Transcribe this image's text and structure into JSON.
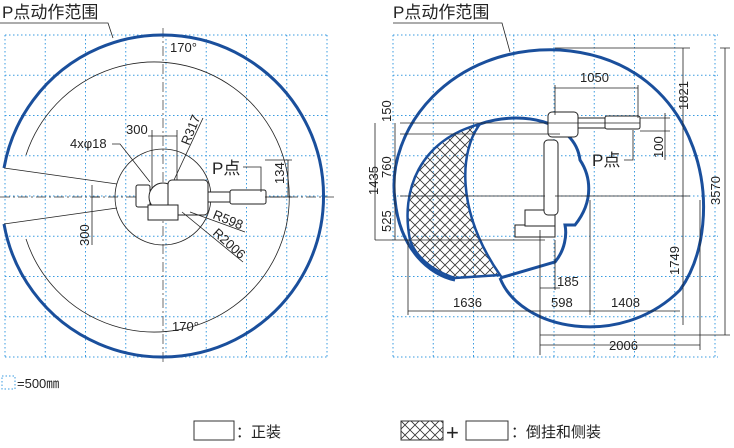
{
  "left_view": {
    "title": "P点动作范围",
    "point_label": "P点",
    "angle_top": "170°",
    "angle_bottom": "170°",
    "dims": {
      "d300_top": "300",
      "hole": "4xφ18",
      "r317": "R317",
      "d134": "134",
      "r598": "R598",
      "r2006": "R2006",
      "d300_left": "300"
    }
  },
  "right_view": {
    "title": "P点动作范围",
    "point_label": "P点",
    "dims": {
      "d1050": "1050",
      "d1821": "1821",
      "d150": "150",
      "d1435": "1435",
      "d760": "760",
      "d525": "525",
      "d100": "100",
      "d3570": "3570",
      "d1749": "1749",
      "d185": "185",
      "d1636": "1636",
      "d598": "598",
      "d1408": "1408",
      "d2006": "2006"
    }
  },
  "grid_legend": "=500㎜",
  "legend": {
    "floor": "：正装",
    "plus": "+",
    "inverted_side": "：倒挂和侧装"
  },
  "colors": {
    "range_outline": "#1a4f9c",
    "grid": "#3a9be0"
  }
}
